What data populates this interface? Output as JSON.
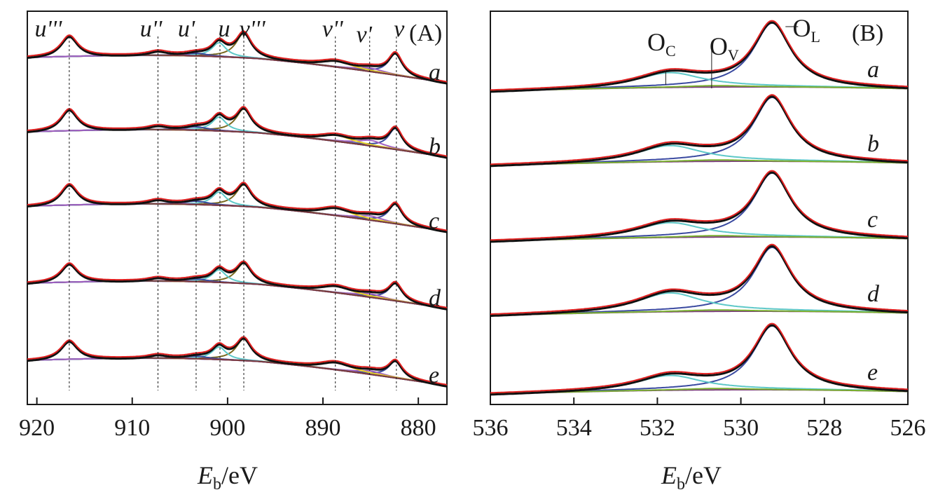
{
  "chart_data": [
    {
      "id": "A",
      "type": "line",
      "panel_label": "(A)",
      "xlabel_main": "E",
      "xlabel_sub": "b",
      "xlabel_unit": "/eV",
      "xlim": [
        921,
        877
      ],
      "xticks": [
        920,
        910,
        900,
        890,
        880
      ],
      "xtick_labels": [
        "920",
        "910",
        "900",
        "890",
        "880"
      ],
      "samples": [
        "a",
        "b",
        "c",
        "d",
        "e"
      ],
      "peaks": [
        {
          "name": "u‴",
          "label": "u'''",
          "x": 916.6,
          "dashed": true
        },
        {
          "name": "u″",
          "label": "u''",
          "x": 907.3,
          "dashed": true
        },
        {
          "name": "u′",
          "label": "u'",
          "x": 903.3,
          "dashed": true
        },
        {
          "name": "u",
          "label": "u",
          "x": 900.8,
          "dashed": true
        },
        {
          "name": "v‴",
          "label": "v'''",
          "x": 898.3,
          "dashed": true
        },
        {
          "name": "v″",
          "label": "v''",
          "x": 888.7,
          "dashed": true
        },
        {
          "name": "v′",
          "label": "v'",
          "x": 885.1,
          "dashed": true
        },
        {
          "name": "v",
          "label": "v",
          "x": 882.3,
          "dashed": true
        }
      ],
      "components": [
        {
          "name": "v",
          "color": "#3a4aa0",
          "center": 882.4,
          "width": 0.9,
          "heights": [
            0.62,
            0.6,
            0.56,
            0.5,
            0.48
          ]
        },
        {
          "name": "v'",
          "color": "#a060c0",
          "center": 885.0,
          "width": 1.6,
          "heights": [
            0.1,
            0.16,
            0.12,
            0.1,
            0.1
          ]
        },
        {
          "name": "v''",
          "color": "#e8d020",
          "center": 888.7,
          "width": 2.0,
          "heights": [
            0.18,
            0.18,
            0.22,
            0.2,
            0.22
          ]
        },
        {
          "name": "v'''",
          "color": "#7a6a20",
          "center": 898.3,
          "width": 1.0,
          "heights": [
            0.7,
            0.66,
            0.62,
            0.58,
            0.62
          ]
        },
        {
          "name": "u",
          "color": "#5ec8c8",
          "center": 900.9,
          "width": 0.9,
          "heights": [
            0.4,
            0.4,
            0.38,
            0.36,
            0.36
          ]
        },
        {
          "name": "u'",
          "color": "#3a4aa0",
          "center": 903.3,
          "width": 1.5,
          "heights": [
            0.08,
            0.1,
            0.1,
            0.08,
            0.08
          ]
        },
        {
          "name": "u''",
          "color": "#a060c0",
          "center": 907.3,
          "width": 1.3,
          "heights": [
            0.12,
            0.11,
            0.12,
            0.1,
            0.1
          ]
        },
        {
          "name": "u'''",
          "color": "#7a3a3a",
          "center": 916.6,
          "width": 1.1,
          "heights": [
            0.6,
            0.62,
            0.6,
            0.54,
            0.54
          ]
        }
      ]
    },
    {
      "id": "B",
      "type": "line",
      "panel_label": "(B)",
      "xlabel_main": "E",
      "xlabel_sub": "b",
      "xlabel_unit": "/eV",
      "xlim": [
        536,
        526
      ],
      "xticks": [
        536,
        534,
        532,
        530,
        528,
        526
      ],
      "xtick_labels": [
        "536",
        "534",
        "532",
        "530",
        "528",
        "526"
      ],
      "samples": [
        "a",
        "b",
        "c",
        "d",
        "e"
      ],
      "o_labels": [
        {
          "main": "O",
          "sub": "C",
          "x": 531.8
        },
        {
          "main": "O",
          "sub": "V",
          "x": 530.7
        },
        {
          "main": "O",
          "sub": "L",
          "x": 529.2
        }
      ],
      "components": [
        {
          "name": "OL",
          "color": "#3a4aa0",
          "center": 529.25,
          "width": 0.55,
          "heights": [
            0.95,
            0.95,
            0.95,
            0.95,
            0.95
          ]
        },
        {
          "name": "OC",
          "color": "#5ec8c8",
          "center": 531.7,
          "width": 0.95,
          "heights": [
            0.22,
            0.24,
            0.22,
            0.28,
            0.22
          ]
        },
        {
          "name": "OV",
          "color": "#7ab030",
          "center": 530.6,
          "width": 0.9,
          "heights": [
            0.02,
            0.02,
            0.02,
            0.02,
            0.02
          ]
        }
      ]
    }
  ],
  "colors": {
    "envelope": "#e02020",
    "raw": "#111111",
    "background": "#7a3a7a",
    "axis": "#1a1a1a"
  }
}
